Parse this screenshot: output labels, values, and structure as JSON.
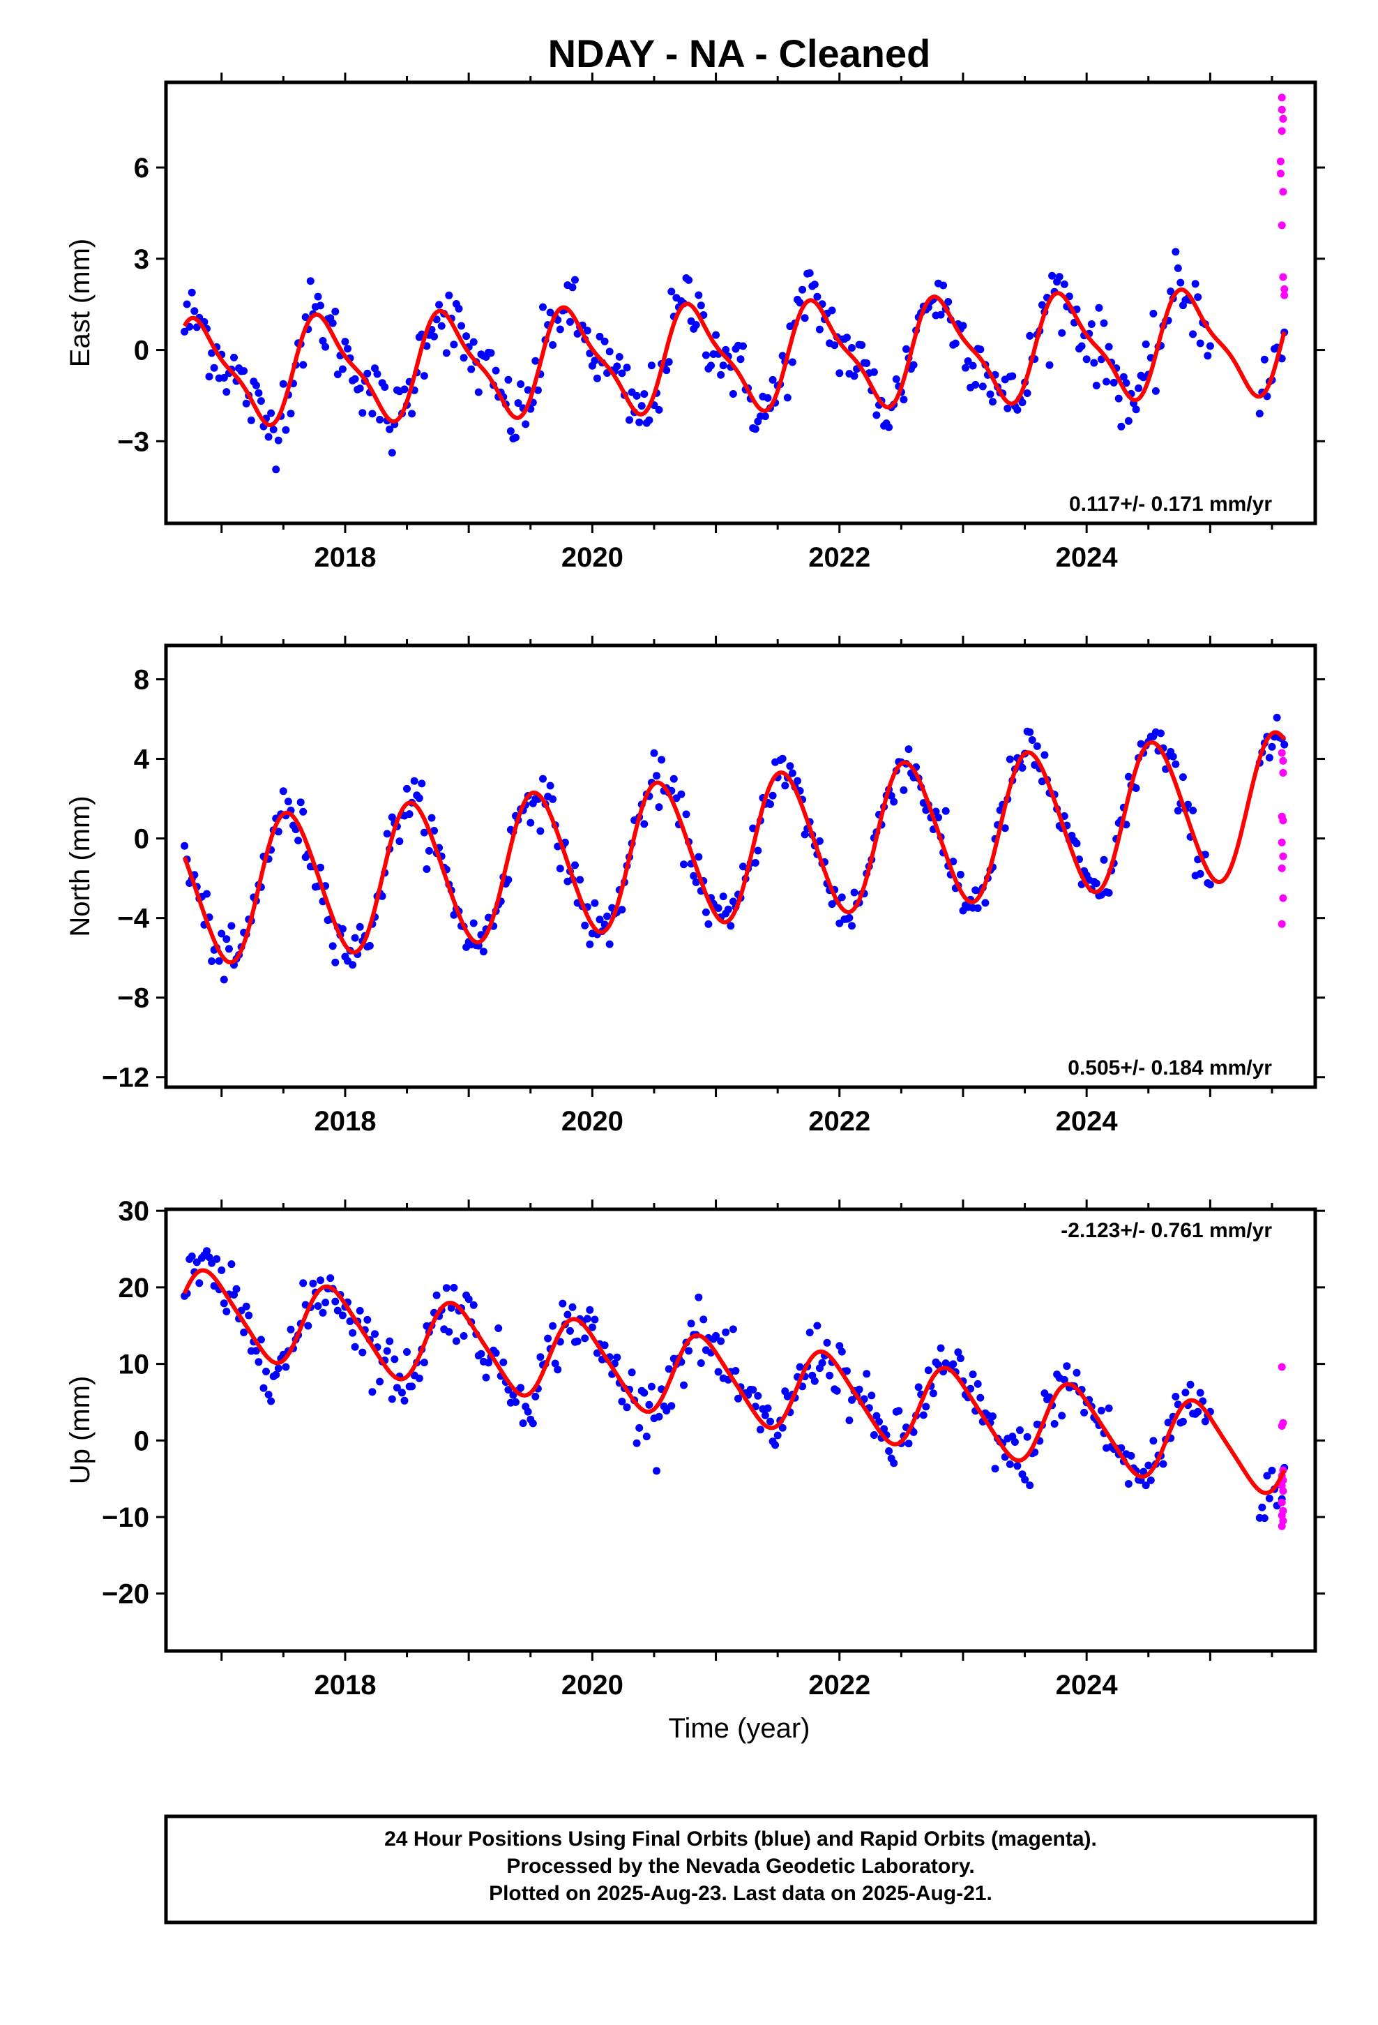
{
  "title": "NDAY  - NA - Cleaned",
  "xlabel": "Time (year)",
  "footer": [
    "24 Hour Positions Using Final Orbits (blue) and Rapid Orbits (magenta).",
    "Processed by the Nevada Geodetic Laboratory.",
    "Plotted on 2025-Aug-23. Last data on 2025-Aug-21."
  ],
  "colors": {
    "final": "#0000ff",
    "rapid": "#ff00ff",
    "model": "#ff0000",
    "frame": "#000000"
  },
  "chart_data": [
    {
      "type": "scatter",
      "panel": "east",
      "ylabel": "East (mm)",
      "xlim": [
        2016.55,
        2025.85
      ],
      "ylim": [
        -5.7,
        8.8
      ],
      "xticks": [
        2018,
        2020,
        2022,
        2024
      ],
      "yticks": [
        -3,
        0,
        3,
        6
      ],
      "rate_text": "0.117+/- 0.171 mm/yr",
      "rate_position": "bottom-right",
      "series": [
        {
          "kind": "final",
          "t_start": 2016.7,
          "t_end": 2025.6,
          "step": 0.02,
          "trend": 0.117,
          "offset": -0.25,
          "annual": 1.6,
          "phase": 0.58,
          "semiannual": 0.45,
          "scatter": 1.1
        },
        {
          "kind": "rapid",
          "points": [
            [
              2025.58,
              8.3
            ],
            [
              2025.58,
              7.9
            ],
            [
              2025.59,
              7.6
            ],
            [
              2025.58,
              7.2
            ],
            [
              2025.57,
              6.2
            ],
            [
              2025.57,
              5.8
            ],
            [
              2025.59,
              5.2
            ],
            [
              2025.58,
              4.1
            ],
            [
              2025.59,
              2.4
            ],
            [
              2025.6,
              2.0
            ],
            [
              2025.6,
              1.8
            ]
          ]
        },
        {
          "kind": "model",
          "amp": 1.6,
          "semi": 0.45,
          "phase": 0.58,
          "trend": 0.117,
          "offset": -0.25
        }
      ]
    },
    {
      "type": "scatter",
      "panel": "north",
      "ylabel": "North (mm)",
      "xlim": [
        2016.55,
        2025.85
      ],
      "ylim": [
        -12.5,
        9.7
      ],
      "xticks": [
        2018,
        2020,
        2022,
        2024
      ],
      "yticks": [
        -12,
        -8,
        -4,
        0,
        4,
        8
      ],
      "rate_text": "0.505+/- 0.184 mm/yr",
      "rate_position": "bottom-right",
      "series": [
        {
          "kind": "final",
          "t_start": 2016.7,
          "t_end": 2025.6,
          "step": 0.02,
          "trend": 0.505,
          "offset": -0.6,
          "annual": 3.6,
          "phase": 0.3,
          "semiannual": 0.3,
          "scatter": 1.2
        },
        {
          "kind": "rapid",
          "points": [
            [
              2025.58,
              4.3
            ],
            [
              2025.59,
              3.9
            ],
            [
              2025.59,
              3.3
            ],
            [
              2025.58,
              1.1
            ],
            [
              2025.59,
              0.9
            ],
            [
              2025.58,
              -0.2
            ],
            [
              2025.59,
              -0.9
            ],
            [
              2025.58,
              -1.5
            ],
            [
              2025.59,
              -3.0
            ],
            [
              2025.58,
              -4.3
            ]
          ]
        },
        {
          "kind": "model",
          "amp": 3.6,
          "semi": 0.3,
          "phase": 0.3,
          "trend": 0.505,
          "offset": -0.6
        }
      ]
    },
    {
      "type": "scatter",
      "panel": "up",
      "ylabel": "Up (mm)",
      "xlim": [
        2016.55,
        2025.85
      ],
      "ylim": [
        -27.5,
        30.2
      ],
      "xticks": [
        2018,
        2020,
        2022,
        2024
      ],
      "yticks": [
        -20,
        -10,
        0,
        10,
        20,
        30
      ],
      "rate_text": "-2.123+/- 0.761 mm/yr",
      "rate_position": "top-right",
      "series": [
        {
          "kind": "final",
          "t_start": 2016.7,
          "t_end": 2025.6,
          "step": 0.02,
          "trend": -2.123,
          "offset": 8.0,
          "annual": 5.2,
          "phase": 0.65,
          "semiannual": 0.8,
          "scatter": 3.8
        },
        {
          "kind": "rapid",
          "points": [
            [
              2025.58,
              9.6
            ],
            [
              2025.59,
              2.3
            ],
            [
              2025.58,
              1.9
            ],
            [
              2025.59,
              -3.9
            ],
            [
              2025.58,
              -4.6
            ],
            [
              2025.59,
              -5.2
            ],
            [
              2025.58,
              -5.9
            ],
            [
              2025.59,
              -6.6
            ],
            [
              2025.58,
              -8.1
            ],
            [
              2025.59,
              -9.2
            ],
            [
              2025.58,
              -9.8
            ],
            [
              2025.59,
              -10.5
            ],
            [
              2025.58,
              -11.2
            ]
          ]
        },
        {
          "kind": "model",
          "amp": 5.2,
          "semi": 0.8,
          "phase": 0.65,
          "trend": -2.123,
          "offset": 8.0
        }
      ]
    }
  ]
}
